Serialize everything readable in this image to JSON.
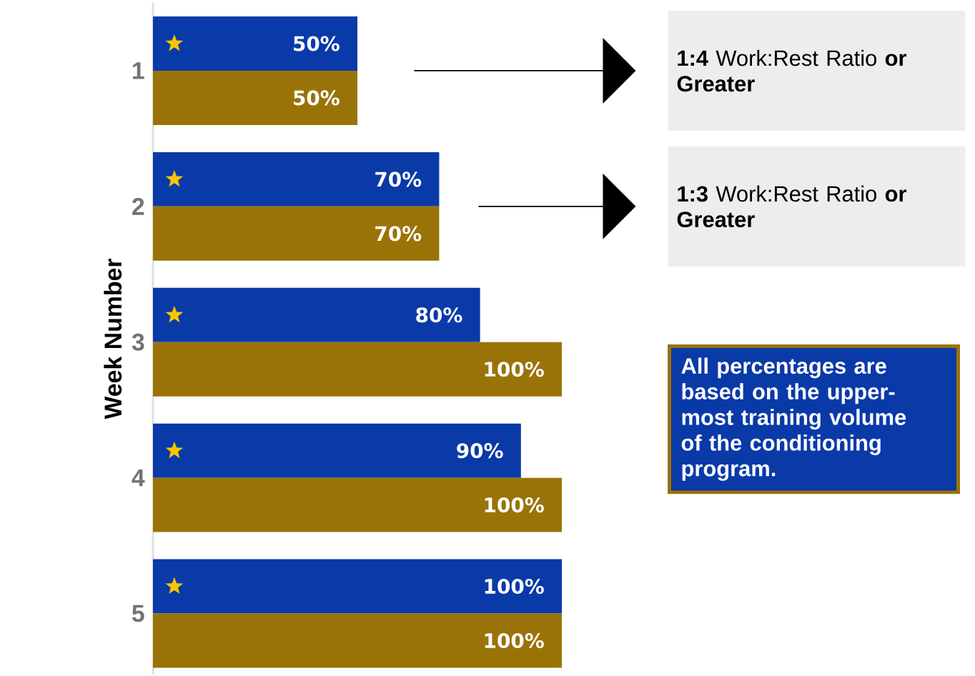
{
  "chart_data": {
    "type": "bar",
    "orientation": "horizontal",
    "ylabel": "Week Number",
    "categories": [
      "1",
      "2",
      "3",
      "4",
      "5"
    ],
    "series": [
      {
        "color": "#0a3aa8",
        "values": [
          50,
          70,
          80,
          90,
          100
        ],
        "value_labels": [
          "50%",
          "70%",
          "80%",
          "90%",
          "100%"
        ]
      },
      {
        "color": "#9a7308",
        "values": [
          50,
          70,
          100,
          100,
          100
        ],
        "value_labels": [
          "50%",
          "70%",
          "100%",
          "100%",
          "100%"
        ]
      }
    ],
    "annotations": [
      "**1:4** Work:Rest Ratio **or Greater**",
      "**1:3** Work:Rest Ratio **or Greater**",
      "All percentages are based on the upper-most training volume of the conditioning program."
    ]
  }
}
